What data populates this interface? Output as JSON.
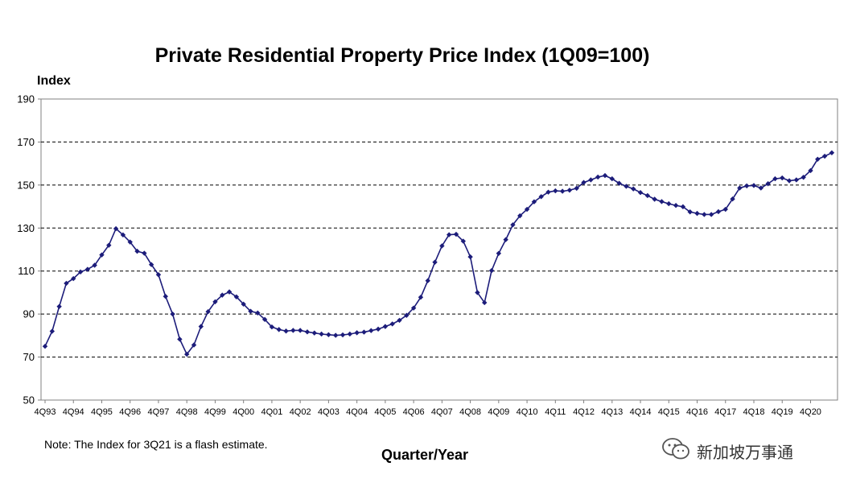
{
  "chart_data": {
    "type": "line",
    "title": "Private Residential Property Price Index (1Q09=100)",
    "ylabel": "Index",
    "xlabel": "Quarter/Year",
    "ylim": [
      50,
      190
    ],
    "yticks": [
      50,
      70,
      90,
      110,
      130,
      150,
      170,
      190
    ],
    "grid": "horizontal dashed",
    "xtick_labels": [
      "4Q93",
      "4Q94",
      "4Q95",
      "4Q96",
      "4Q97",
      "4Q98",
      "4Q99",
      "4Q00",
      "4Q01",
      "4Q02",
      "4Q03",
      "4Q04",
      "4Q05",
      "4Q06",
      "4Q07",
      "4Q08",
      "4Q09",
      "4Q10",
      "4Q11",
      "4Q12",
      "4Q13",
      "4Q14",
      "4Q15",
      "4Q16",
      "4Q17",
      "4Q18",
      "4Q19",
      "4Q20"
    ],
    "x_start": "4Q93",
    "x_end": "3Q21",
    "series": [
      {
        "color": "#1c1c7a",
        "values": [
          75.0,
          82.0,
          93.5,
          104.3,
          106.5,
          109.6,
          110.8,
          112.7,
          117.5,
          122.0,
          129.7,
          126.8,
          123.5,
          119.2,
          118.3,
          113.0,
          108.3,
          98.2,
          90.0,
          78.3,
          71.3,
          75.6,
          84.2,
          91.1,
          95.7,
          98.8,
          100.3,
          98.0,
          94.6,
          91.3,
          90.5,
          87.5,
          84.0,
          82.8,
          82.1,
          82.4,
          82.4,
          81.7,
          81.2,
          80.7,
          80.4,
          80.1,
          80.3,
          80.7,
          81.3,
          81.6,
          82.3,
          83.0,
          84.2,
          85.4,
          87.1,
          89.4,
          92.8,
          97.8,
          105.5,
          114.1,
          121.7,
          126.9,
          127.1,
          123.9,
          116.6,
          100.0,
          95.3,
          110.2,
          118.2,
          124.6,
          131.5,
          135.7,
          138.7,
          142.2,
          144.6,
          146.7,
          147.3,
          147.1,
          147.6,
          148.5,
          151.2,
          152.4,
          153.7,
          154.4,
          152.9,
          150.8,
          149.4,
          148.2,
          146.5,
          145.1,
          143.4,
          142.3,
          141.3,
          140.5,
          139.9,
          137.5,
          136.8,
          136.3,
          136.3,
          137.6,
          138.7,
          143.5,
          148.6,
          149.6,
          149.8,
          148.6,
          150.6,
          152.9,
          153.3,
          152.0,
          152.4,
          153.6,
          156.7,
          162.0,
          163.4,
          165.0
        ]
      }
    ]
  },
  "note": "Note: The Index for 3Q21 is a flash estimate.",
  "watermark": {
    "text": "新加坡万事通",
    "icon": "wechat-icon"
  },
  "colors": {
    "line": "#1c1c7a",
    "grid": "#000000",
    "axis": "#808080"
  }
}
